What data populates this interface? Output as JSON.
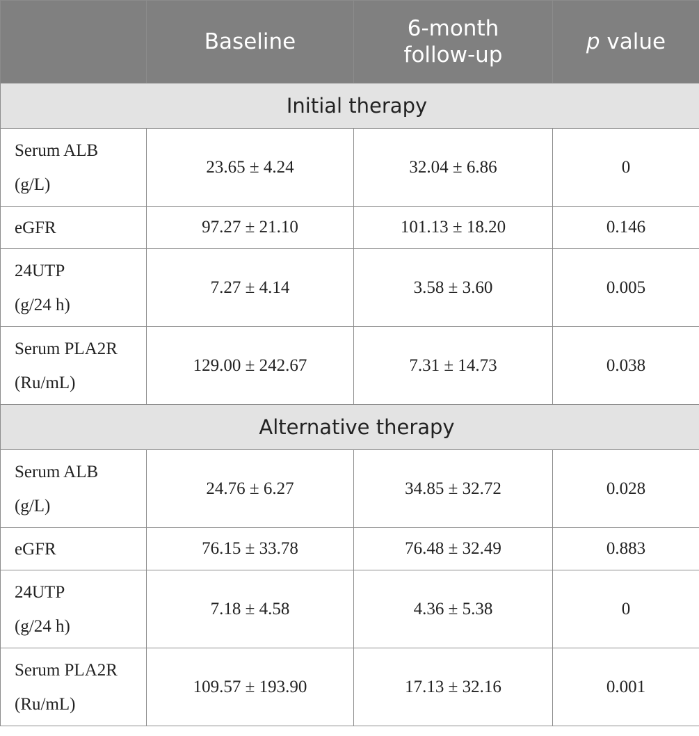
{
  "header": {
    "baseline": "Baseline",
    "followup": "6-month follow-up",
    "pvalue_italic": "p",
    "pvalue_rest": " value"
  },
  "sections": [
    {
      "title": "Initial therapy",
      "rows": [
        {
          "label_line1": "Serum ALB",
          "label_line2": "(g/L)",
          "baseline": "23.65 ± 4.24",
          "followup": "32.04 ± 6.86",
          "p": "0"
        },
        {
          "label_line1": "eGFR",
          "label_line2": "",
          "baseline": "97.27 ± 21.10",
          "followup": "101.13 ± 18.20",
          "p": "0.146"
        },
        {
          "label_line1": "24UTP",
          "label_line2": "(g/24 h)",
          "baseline": "7.27 ± 4.14",
          "followup": "3.58 ± 3.60",
          "p": "0.005"
        },
        {
          "label_line1": "Serum PLA2R",
          "label_line2": "(Ru/mL)",
          "baseline": "129.00 ± 242.67",
          "followup": "7.31 ± 14.73",
          "p": "0.038"
        }
      ]
    },
    {
      "title": "Alternative therapy",
      "rows": [
        {
          "label_line1": "Serum ALB",
          "label_line2": "(g/L)",
          "baseline": "24.76 ± 6.27",
          "followup": "34.85 ± 32.72",
          "p": "0.028"
        },
        {
          "label_line1": "eGFR",
          "label_line2": "",
          "baseline": "76.15 ± 33.78",
          "followup": "76.48 ± 32.49",
          "p": "0.883"
        },
        {
          "label_line1": "24UTP",
          "label_line2": "(g/24 h)",
          "baseline": "7.18 ± 4.58",
          "followup": "4.36 ± 5.38",
          "p": "0"
        },
        {
          "label_line1": "Serum PLA2R",
          "label_line2": "(Ru/mL)",
          "baseline": "109.57 ± 193.90",
          "followup": "17.13 ± 32.16",
          "p": "0.001"
        }
      ]
    }
  ]
}
